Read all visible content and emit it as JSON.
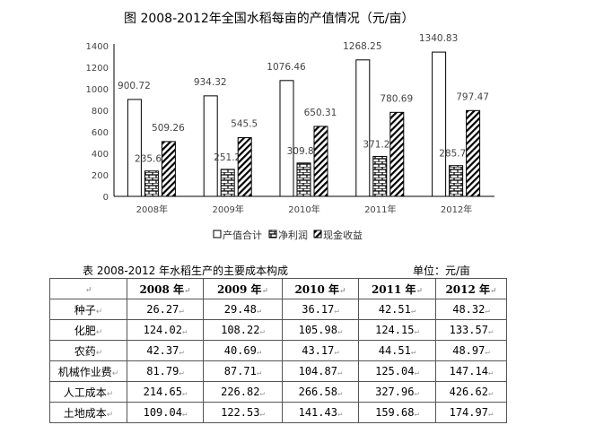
{
  "chart_data": {
    "type": "bar",
    "title": "图  2008-2012年全国水稻每亩的产值情况（元/亩）",
    "categories": [
      "2008年",
      "2009年",
      "2010年",
      "2011年",
      "2012年"
    ],
    "series": [
      {
        "name": "产值合计",
        "values": [
          900.72,
          934.32,
          1076.46,
          1268.25,
          1340.83
        ],
        "labels": [
          "900.72",
          "934.32",
          "1076.46",
          "1268.25",
          "1340.83"
        ]
      },
      {
        "name": "净利润",
        "values": [
          235.62,
          251.2,
          309.82,
          371.27,
          285.78
        ],
        "labels": [
          "235.62",
          "251.2",
          "309.82",
          "371.27",
          "285.78"
        ]
      },
      {
        "name": "现金收益",
        "values": [
          509.26,
          545.5,
          650.31,
          780.69,
          797.47
        ],
        "labels": [
          "509.26",
          "545.5",
          "650.31",
          "780.69",
          "797.47"
        ]
      }
    ],
    "ylim": [
      0,
      1400
    ],
    "yticks": [
      "0",
      "200",
      "400",
      "600",
      "800",
      "1000",
      "1200",
      "1400"
    ],
    "legend": "bottom",
    "grid": false
  },
  "table": {
    "title": "表    2008-2012 年水稻生产的主要成本构成",
    "unit": "单位：元/亩",
    "headers": [
      "",
      "2008 年",
      "2009 年",
      "2010 年",
      "2011 年",
      "2012 年"
    ],
    "rows": [
      [
        "种子",
        "26.27",
        "29.48",
        "36.17",
        "42.51",
        "48.32"
      ],
      [
        "化肥",
        "124.02",
        "108.22",
        "105.98",
        "124.15",
        "133.57"
      ],
      [
        "农药",
        "42.37",
        "40.69",
        "43.17",
        "44.51",
        "48.97"
      ],
      [
        "机械作业费",
        "81.79",
        "87.71",
        "104.87",
        "125.04",
        "147.14"
      ],
      [
        "人工成本",
        "214.65",
        "226.82",
        "266.58",
        "327.96",
        "426.62"
      ],
      [
        "土地成本",
        "109.04",
        "122.53",
        "141.43",
        "159.68",
        "174.97"
      ]
    ]
  }
}
